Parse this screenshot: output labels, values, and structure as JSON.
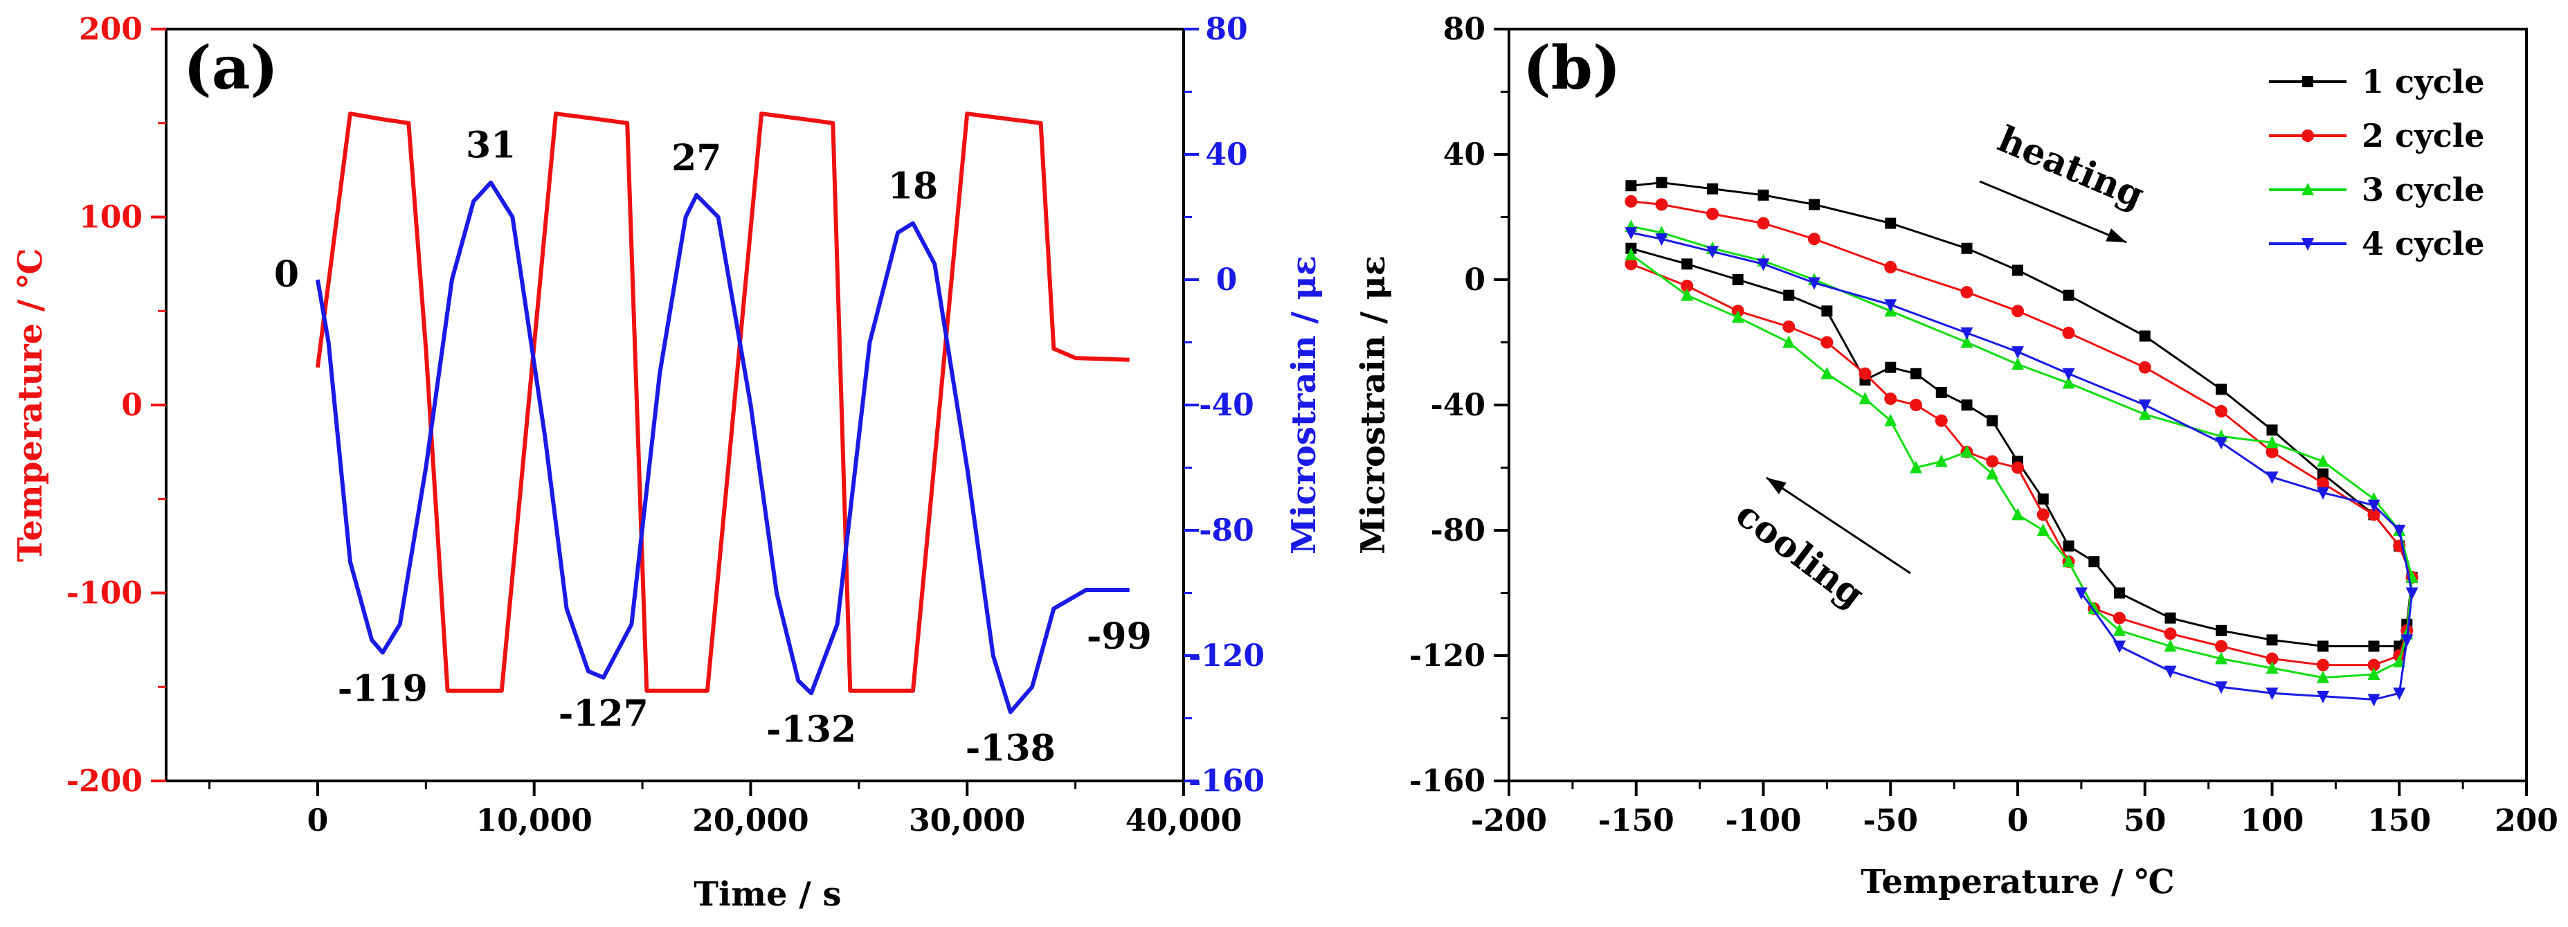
{
  "chart_data": [
    {
      "panel_label": "(a)",
      "type": "line",
      "xlabel": "Time / s",
      "xlim": [
        -7000,
        40000
      ],
      "xticks": [
        0,
        10000,
        20000,
        30000,
        40000
      ],
      "xtick_labels": [
        "0",
        "10,000",
        "20,000",
        "30,000",
        "40,000"
      ],
      "ylabel_left": "Temperature / ℃",
      "ylim_left": [
        -200,
        200
      ],
      "yticks_left": [
        "-200",
        "-100",
        "0",
        "100",
        "200"
      ],
      "ylabel_right": "Microstrain / με",
      "ylim_right": [
        -160,
        80
      ],
      "yticks_right": [
        "-160",
        "-120",
        "-80",
        "-40",
        "0",
        "40",
        "80"
      ],
      "colors": {
        "temperature": "#ee1111",
        "strain": "#1a1ae6",
        "axis": "#000000"
      },
      "series": [
        {
          "name": "Temperature",
          "axis": "left",
          "color": "#ee1111",
          "x": [
            0,
            1500,
            3000,
            4200,
            5000,
            6000,
            6500,
            8500,
            11000,
            13000,
            14300,
            15200,
            16000,
            18000,
            20500,
            22500,
            23800,
            24600,
            25500,
            27500,
            30000,
            32000,
            33400,
            34000,
            35000,
            37500
          ],
          "y": [
            20,
            155,
            152,
            150,
            30,
            -152,
            -152,
            -152,
            155,
            152,
            150,
            -152,
            -152,
            -152,
            155,
            152,
            150,
            -152,
            -152,
            -152,
            155,
            152,
            150,
            30,
            25,
            24
          ]
        },
        {
          "name": "Microstrain",
          "axis": "right",
          "color": "#1a1ae6",
          "x": [
            0,
            500,
            1500,
            2500,
            3000,
            3800,
            5000,
            6200,
            7200,
            8000,
            9000,
            10500,
            11500,
            12500,
            13200,
            14500,
            15800,
            17000,
            17500,
            18500,
            20000,
            21200,
            22200,
            22800,
            24000,
            25500,
            26800,
            27500,
            28500,
            30000,
            31200,
            32000,
            33000,
            34000,
            35500,
            37500
          ],
          "y": [
            0,
            -20,
            -90,
            -115,
            -119,
            -110,
            -60,
            0,
            25,
            31,
            20,
            -50,
            -105,
            -125,
            -127,
            -110,
            -30,
            20,
            27,
            20,
            -40,
            -100,
            -128,
            -132,
            -110,
            -20,
            15,
            18,
            5,
            -60,
            -120,
            -138,
            -130,
            -105,
            -99,
            -99
          ]
        }
      ],
      "annotations": [
        {
          "text": "0",
          "x": 0,
          "y": 0,
          "axis": "right"
        },
        {
          "text": "31",
          "x": 8000,
          "y": 31,
          "axis": "right"
        },
        {
          "text": "27",
          "x": 17500,
          "y": 27,
          "axis": "right"
        },
        {
          "text": "18",
          "x": 27500,
          "y": 18,
          "axis": "right"
        },
        {
          "text": "-119",
          "x": 3000,
          "y": -119,
          "axis": "right"
        },
        {
          "text": "-127",
          "x": 13200,
          "y": -127,
          "axis": "right"
        },
        {
          "text": "-132",
          "x": 22800,
          "y": -132,
          "axis": "right"
        },
        {
          "text": "-138",
          "x": 32000,
          "y": -138,
          "axis": "right"
        },
        {
          "text": "-99",
          "x": 37500,
          "y": -99,
          "axis": "right"
        }
      ]
    },
    {
      "panel_label": "(b)",
      "type": "line",
      "xlabel": "Temperature / ℃",
      "xlim": [
        -200,
        200
      ],
      "xticks": [
        "-200",
        "-150",
        "-100",
        "-50",
        "0",
        "50",
        "100",
        "150",
        "200"
      ],
      "ylabel": "Microstrain / με",
      "ylim": [
        -160,
        80
      ],
      "yticks": [
        "-160",
        "-120",
        "-80",
        "-40",
        "0",
        "40",
        "80"
      ],
      "legend_position": "top-right",
      "series": [
        {
          "name": "1 cycle",
          "color": "#000000",
          "marker": "square",
          "x": [
            -152,
            -140,
            -120,
            -100,
            -80,
            -50,
            -20,
            0,
            20,
            50,
            80,
            100,
            120,
            140,
            150,
            155,
            153,
            150,
            140,
            120,
            100,
            80,
            60,
            40,
            30,
            20,
            10,
            0,
            -10,
            -20,
            -30,
            -40,
            -50,
            -60,
            -75,
            -90,
            -110,
            -130,
            -152
          ],
          "y": [
            30,
            31,
            29,
            27,
            24,
            18,
            10,
            3,
            -5,
            -18,
            -35,
            -48,
            -62,
            -75,
            -85,
            -95,
            -110,
            -117,
            -117,
            -117,
            -115,
            -112,
            -108,
            -100,
            -90,
            -85,
            -70,
            -58,
            -45,
            -40,
            -36,
            -30,
            -28,
            -32,
            -10,
            -5,
            0,
            5,
            10
          ]
        },
        {
          "name": "2 cycle",
          "color": "#ee1111",
          "marker": "circle",
          "x": [
            -152,
            -140,
            -120,
            -100,
            -80,
            -50,
            -20,
            0,
            20,
            50,
            80,
            100,
            120,
            140,
            150,
            155,
            153,
            150,
            140,
            120,
            100,
            80,
            60,
            40,
            30,
            20,
            10,
            0,
            -10,
            -20,
            -30,
            -40,
            -50,
            -60,
            -75,
            -90,
            -110,
            -130,
            -152
          ],
          "y": [
            25,
            24,
            21,
            18,
            13,
            4,
            -4,
            -10,
            -17,
            -28,
            -42,
            -55,
            -65,
            -75,
            -85,
            -95,
            -112,
            -120,
            -123,
            -123,
            -121,
            -117,
            -113,
            -108,
            -105,
            -90,
            -75,
            -60,
            -58,
            -55,
            -45,
            -40,
            -38,
            -30,
            -20,
            -15,
            -10,
            -2,
            5
          ]
        },
        {
          "name": "3 cycle",
          "color": "#11dd11",
          "marker": "triangle-up",
          "x": [
            -152,
            -140,
            -120,
            -100,
            -80,
            -50,
            -20,
            0,
            20,
            50,
            80,
            100,
            120,
            140,
            150,
            155,
            153,
            150,
            140,
            120,
            100,
            80,
            60,
            40,
            30,
            20,
            10,
            0,
            -10,
            -20,
            -30,
            -40,
            -50,
            -60,
            -75,
            -90,
            -110,
            -130,
            -152
          ],
          "y": [
            17,
            15,
            10,
            6,
            0,
            -10,
            -20,
            -27,
            -33,
            -43,
            -50,
            -52,
            -58,
            -70,
            -80,
            -95,
            -113,
            -122,
            -126,
            -127,
            -124,
            -121,
            -117,
            -112,
            -105,
            -90,
            -80,
            -75,
            -62,
            -55,
            -58,
            -60,
            -45,
            -38,
            -30,
            -20,
            -12,
            -5,
            8
          ]
        },
        {
          "name": "4 cycle",
          "color": "#1a1ae6",
          "marker": "triangle-down",
          "x": [
            -152,
            -140,
            -120,
            -100,
            -80,
            -50,
            -20,
            0,
            20,
            50,
            80,
            100,
            120,
            140,
            150,
            155,
            153,
            150,
            140,
            120,
            100,
            80,
            60,
            40,
            25
          ],
          "y": [
            15,
            13,
            9,
            5,
            -1,
            -8,
            -17,
            -23,
            -30,
            -40,
            -52,
            -63,
            -68,
            -72,
            -80,
            -100,
            -115,
            -132,
            -134,
            -133,
            -132,
            -130,
            -125,
            -117,
            -100
          ]
        }
      ],
      "annotations": [
        {
          "text": "heating"
        },
        {
          "text": "cooling"
        }
      ]
    }
  ]
}
